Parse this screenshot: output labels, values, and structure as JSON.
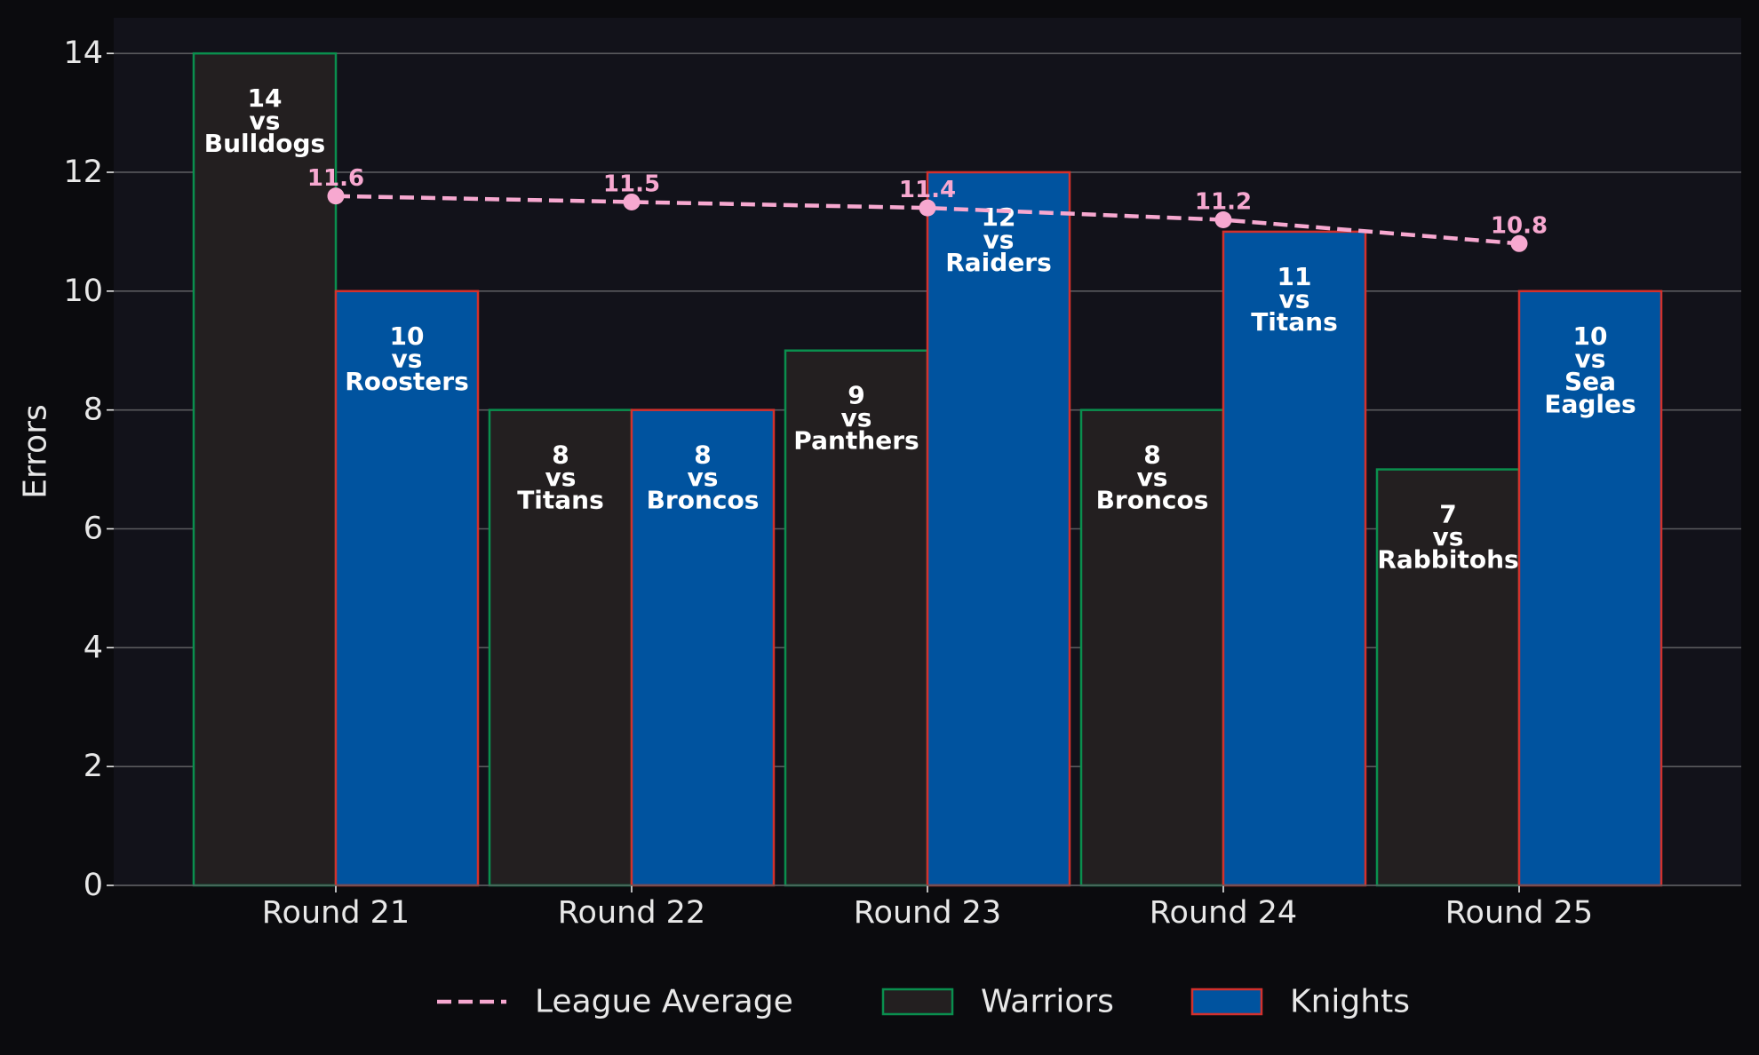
{
  "chart_data": {
    "type": "bar",
    "categories": [
      "Round 21",
      "Round 22",
      "Round 23",
      "Round 24",
      "Round 25"
    ],
    "ylabel": "Errors",
    "xlabel": "",
    "ylim": [
      0,
      14.6
    ],
    "yticks": [
      0,
      2,
      4,
      6,
      8,
      10,
      12,
      14
    ],
    "grid": "y",
    "legend_position": "bottom",
    "series": [
      {
        "name": "Warriors",
        "type": "bar",
        "values": [
          14,
          8,
          9,
          8,
          7
        ],
        "labels": [
          "14\nvs\nBulldogs",
          "8\nvs\nTitans",
          "9\nvs\nPanthers",
          "8\nvs\nBroncos",
          "7\nvs\nRabbitohs"
        ],
        "fill": "#231f20",
        "edge": "#0a8f4e"
      },
      {
        "name": "Knights",
        "type": "bar",
        "values": [
          10,
          8,
          12,
          11,
          10
        ],
        "labels": [
          "10\nvs\nRoosters",
          "8\nvs\nBroncos",
          "12\nvs\nRaiders",
          "11\nvs\nTitans",
          "10\nvs\nSea\nEagles"
        ],
        "fill": "#00539f",
        "edge": "#d3312d"
      },
      {
        "name": "League Average",
        "type": "line",
        "values": [
          11.6,
          11.5,
          11.4,
          11.2,
          10.8
        ],
        "labels": [
          "11.6",
          "11.5",
          "11.4",
          "11.2",
          "10.8"
        ],
        "color": "#f7a8d0",
        "style": "dashed"
      }
    ]
  },
  "colors": {
    "figure_bg": "#0b0b0e",
    "plot_bg": "#12121a",
    "grid": "#5a5a5e",
    "text": "#e8e8e8",
    "bar_label": "#ffffff"
  }
}
